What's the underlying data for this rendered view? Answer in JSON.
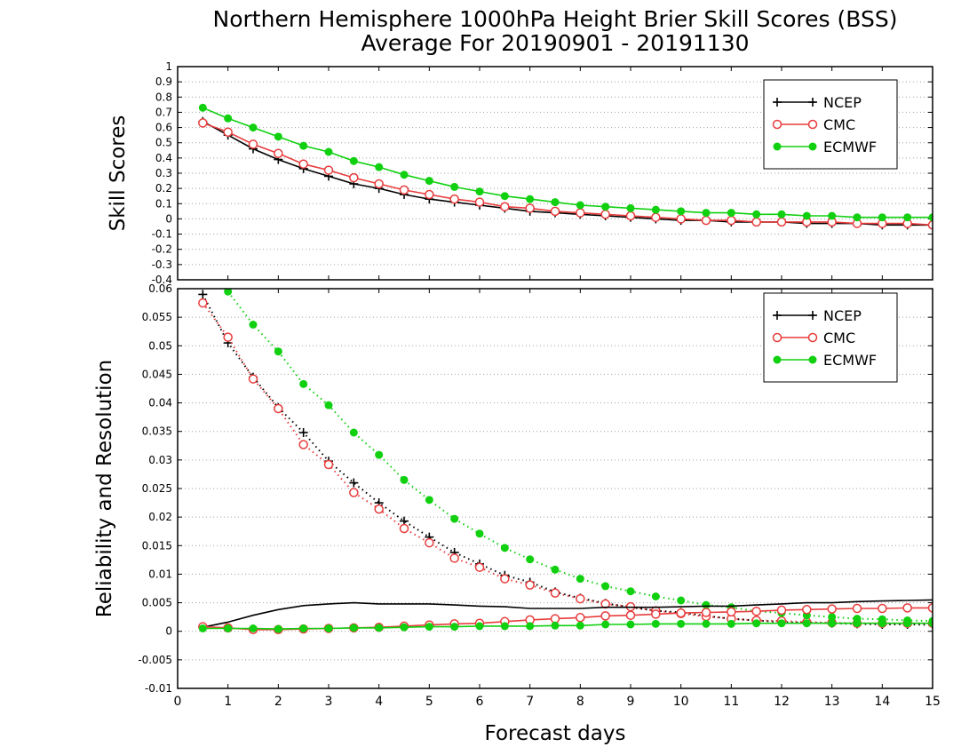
{
  "title_line1": "Northern Hemisphere 1000hPa Height Brier Skill Scores (BSS)",
  "title_line2": "Average For 20190901 - 20191130",
  "xlabel": "Forecast days",
  "colors": {
    "NCEP": "#000000",
    "CMC": "#e83c3c",
    "ECMWF": "#10d010"
  },
  "chart_data": [
    {
      "type": "line",
      "panel": "top",
      "ylabel": "Skill Scores",
      "xlim": [
        0,
        15
      ],
      "ylim": [
        -0.4,
        1
      ],
      "xticks": [
        0,
        1,
        2,
        3,
        4,
        5,
        6,
        7,
        8,
        9,
        10,
        11,
        12,
        13,
        14,
        15
      ],
      "yticks": [
        -0.4,
        -0.3,
        -0.2,
        -0.1,
        0,
        0.1,
        0.2,
        0.3,
        0.4,
        0.5,
        0.6,
        0.7,
        0.8,
        0.9,
        1
      ],
      "ytick_labels": [
        "-0.4",
        "-0.3",
        "-0.2",
        "-0.1",
        "0",
        "0.1",
        "0.2",
        "0.3",
        "0.4",
        "0.5",
        "0.6",
        "0.7",
        "0.8",
        "0.9",
        "1"
      ],
      "grid": true,
      "legend": "top-right",
      "x": [
        0.5,
        1,
        1.5,
        2,
        2.5,
        3,
        3.5,
        4,
        4.5,
        5,
        5.5,
        6,
        6.5,
        7,
        7.5,
        8,
        8.5,
        9,
        9.5,
        10,
        10.5,
        11,
        11.5,
        12,
        12.5,
        13,
        13.5,
        14,
        14.5,
        15
      ],
      "series": [
        {
          "name": "NCEP",
          "marker": "plus",
          "style": "solid",
          "values": [
            0.64,
            0.55,
            0.46,
            0.39,
            0.33,
            0.28,
            0.23,
            0.2,
            0.16,
            0.13,
            0.11,
            0.09,
            0.07,
            0.05,
            0.04,
            0.03,
            0.02,
            0.01,
            0.0,
            -0.01,
            -0.01,
            -0.02,
            -0.02,
            -0.02,
            -0.03,
            -0.03,
            -0.03,
            -0.04,
            -0.04,
            -0.04
          ]
        },
        {
          "name": "CMC",
          "marker": "open-circle",
          "style": "solid",
          "values": [
            0.63,
            0.57,
            0.49,
            0.43,
            0.36,
            0.32,
            0.27,
            0.23,
            0.19,
            0.16,
            0.13,
            0.11,
            0.08,
            0.07,
            0.05,
            0.04,
            0.03,
            0.02,
            0.01,
            0.0,
            -0.01,
            -0.01,
            -0.02,
            -0.02,
            -0.02,
            -0.02,
            -0.03,
            -0.03,
            -0.03,
            -0.04
          ]
        },
        {
          "name": "ECMWF",
          "marker": "filled-circle",
          "style": "solid",
          "values": [
            0.73,
            0.66,
            0.6,
            0.54,
            0.48,
            0.44,
            0.38,
            0.34,
            0.29,
            0.25,
            0.21,
            0.18,
            0.15,
            0.13,
            0.11,
            0.09,
            0.08,
            0.07,
            0.06,
            0.05,
            0.04,
            0.04,
            0.03,
            0.03,
            0.02,
            0.02,
            0.01,
            0.01,
            0.01,
            0.01
          ]
        }
      ]
    },
    {
      "type": "line",
      "panel": "bottom",
      "ylabel": "Reliability and Resolution",
      "xlim": [
        0,
        15
      ],
      "ylim": [
        -0.01,
        0.06
      ],
      "xticks": [
        0,
        1,
        2,
        3,
        4,
        5,
        6,
        7,
        8,
        9,
        10,
        11,
        12,
        13,
        14,
        15
      ],
      "yticks": [
        -0.01,
        -0.005,
        0,
        0.005,
        0.01,
        0.015,
        0.02,
        0.025,
        0.03,
        0.035,
        0.04,
        0.045,
        0.05,
        0.055,
        0.06
      ],
      "ytick_labels": [
        "-0.01",
        "-0.005",
        "0",
        "0.005",
        "0.01",
        "0.015",
        "0.02",
        "0.025",
        "0.03",
        "0.035",
        "0.04",
        "0.045",
        "0.05",
        "0.055",
        "0.06"
      ],
      "grid": true,
      "legend": "top-right",
      "x": [
        0.5,
        1,
        1.5,
        2,
        2.5,
        3,
        3.5,
        4,
        4.5,
        5,
        5.5,
        6,
        6.5,
        7,
        7.5,
        8,
        8.5,
        9,
        9.5,
        10,
        10.5,
        11,
        11.5,
        12,
        12.5,
        13,
        13.5,
        14,
        14.5,
        15
      ],
      "series": [
        {
          "name": "NCEP",
          "component": "resolution",
          "marker": "plus",
          "style": "dotted",
          "values": [
            0.059,
            0.0505,
            0.0445,
            0.0392,
            0.0348,
            0.0298,
            0.026,
            0.0225,
            0.0193,
            0.0165,
            0.0138,
            0.0118,
            0.0098,
            0.0086,
            0.0069,
            0.0058,
            0.0049,
            0.0042,
            0.0036,
            0.0033,
            0.0027,
            0.0022,
            0.0019,
            0.0016,
            0.0015,
            0.0014,
            0.0013,
            0.0012,
            0.0012,
            0.0011
          ]
        },
        {
          "name": "CMC",
          "component": "resolution",
          "marker": "open-circle",
          "style": "dotted",
          "values": [
            0.0575,
            0.0515,
            0.0442,
            0.039,
            0.0327,
            0.0292,
            0.0243,
            0.0214,
            0.018,
            0.0155,
            0.0128,
            0.0112,
            0.0092,
            0.0081,
            0.0067,
            0.0057,
            0.0048,
            0.0043,
            0.0036,
            0.0031,
            0.0026,
            0.0022,
            0.0019,
            0.0018,
            0.0016,
            0.0015,
            0.0014,
            0.0014,
            0.0014,
            0.0014
          ]
        },
        {
          "name": "ECMWF",
          "component": "resolution",
          "marker": "filled-circle",
          "style": "dotted",
          "values": [
            0.0635,
            0.0595,
            0.0537,
            0.049,
            0.0433,
            0.0396,
            0.0348,
            0.0309,
            0.0265,
            0.023,
            0.0197,
            0.0171,
            0.0146,
            0.0126,
            0.0108,
            0.0092,
            0.0079,
            0.007,
            0.0061,
            0.0054,
            0.0046,
            0.0042,
            0.0035,
            0.0032,
            0.0028,
            0.0025,
            0.0022,
            0.0021,
            0.0019,
            0.0018
          ]
        },
        {
          "name": "NCEP",
          "component": "reliability",
          "marker": "none",
          "style": "solid",
          "values": [
            0.0007,
            0.0016,
            0.0028,
            0.0038,
            0.0045,
            0.0048,
            0.005,
            0.0048,
            0.0048,
            0.0048,
            0.0046,
            0.0044,
            0.0043,
            0.004,
            0.004,
            0.004,
            0.0042,
            0.0042,
            0.0042,
            0.0043,
            0.0044,
            0.0044,
            0.0046,
            0.0048,
            0.005,
            0.005,
            0.0052,
            0.0053,
            0.0054,
            0.0055
          ]
        },
        {
          "name": "CMC",
          "component": "reliability",
          "marker": "open-circle",
          "style": "solid",
          "values": [
            0.0008,
            0.0006,
            0.0003,
            0.0003,
            0.0004,
            0.0005,
            0.0006,
            0.0007,
            0.0009,
            0.0011,
            0.0013,
            0.0014,
            0.0017,
            0.002,
            0.0022,
            0.0024,
            0.0027,
            0.0028,
            0.003,
            0.0032,
            0.0033,
            0.0034,
            0.0035,
            0.0037,
            0.0038,
            0.0039,
            0.004,
            0.004,
            0.0041,
            0.0041
          ]
        },
        {
          "name": "ECMWF",
          "component": "reliability",
          "marker": "filled-circle",
          "style": "solid",
          "values": [
            0.0005,
            0.0005,
            0.0005,
            0.0004,
            0.0005,
            0.0005,
            0.0006,
            0.0006,
            0.0007,
            0.0008,
            0.0008,
            0.0009,
            0.0009,
            0.0009,
            0.001,
            0.001,
            0.0012,
            0.0012,
            0.0013,
            0.0013,
            0.0013,
            0.0013,
            0.0014,
            0.0014,
            0.0014,
            0.0014,
            0.0014,
            0.0014,
            0.0014,
            0.0014
          ]
        }
      ]
    }
  ]
}
